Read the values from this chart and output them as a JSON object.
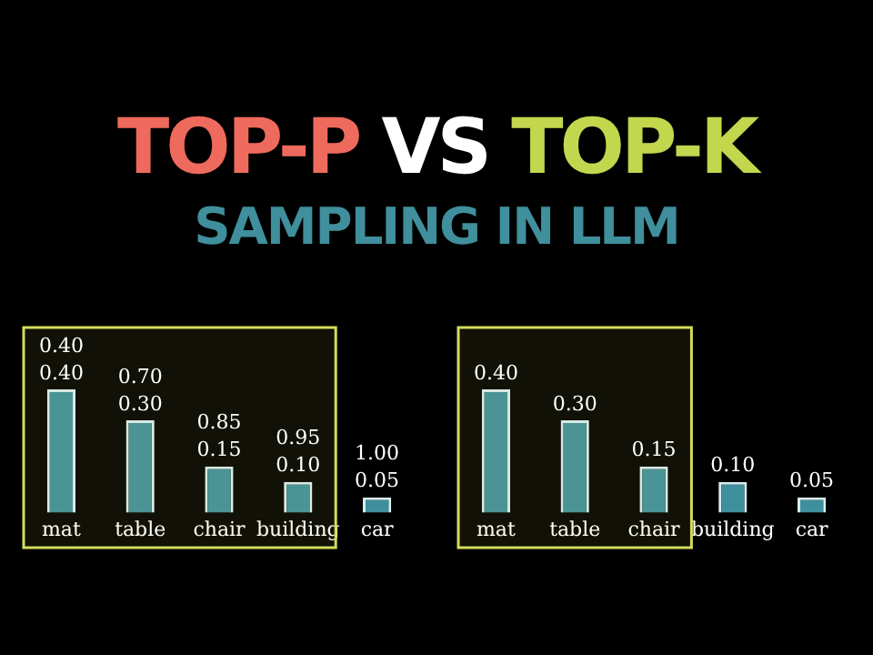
{
  "chart_data": [
    {
      "type": "bar",
      "title": "TOP-P VS TOP-K",
      "subtitle": "SAMPLING IN LLM",
      "categories": [
        "mat",
        "table",
        "chair",
        "building",
        "car"
      ],
      "values": [
        0.4,
        0.3,
        0.15,
        0.1,
        0.05
      ],
      "color": "#3f8f9c",
      "value_labels": [
        "0.40",
        "0.30",
        "0.15",
        "0.10",
        "0.05"
      ],
      "annotations": [
        "0.40",
        "0.70",
        "0.85",
        "0.95",
        "1.00"
      ],
      "bands": [
        {
          "axis": "x",
          "from": "mat",
          "to": "building",
          "color": "#d4dc5a"
        }
      ],
      "tick_labels": "x",
      "legend": false
    },
    {
      "type": "bar",
      "categories": [
        "mat",
        "table",
        "chair",
        "building",
        "car"
      ],
      "values": [
        0.4,
        0.3,
        0.15,
        0.1,
        0.05
      ],
      "color": "#3f8f9c",
      "value_labels": [
        "0.40",
        "0.30",
        "0.15",
        "0.10",
        "0.05"
      ],
      "bands": [
        {
          "axis": "x",
          "from": "mat",
          "to": "chair",
          "color": "#d4dc5a"
        }
      ],
      "tick_labels": "x",
      "legend": false
    }
  ]
}
